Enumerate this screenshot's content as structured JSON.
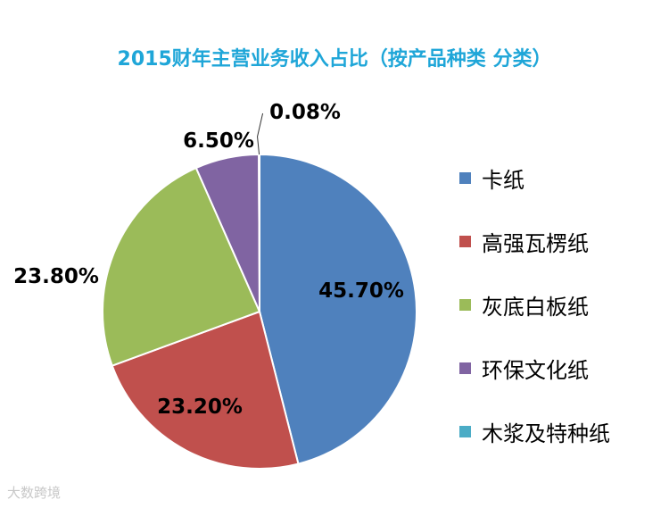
{
  "chart_data": {
    "type": "pie",
    "title": "2015财年主营业务收入占比（按产品种类 分类）",
    "start_angle_deg": 0,
    "direction": "clockwise",
    "legend_position": "right",
    "slices": [
      {
        "name": "卡纸",
        "value": 45.7,
        "label": "45.70%",
        "color": "#4f81bd"
      },
      {
        "name": "高强瓦楞纸",
        "value": 23.2,
        "label": "23.20%",
        "color": "#c0504d"
      },
      {
        "name": "灰底白板纸",
        "value": 23.8,
        "label": "23.80%",
        "color": "#9bbb59"
      },
      {
        "name": "环保文化纸",
        "value": 6.5,
        "label": "6.50%",
        "color": "#8064a2"
      },
      {
        "name": "木浆及特种纸",
        "value": 0.08,
        "label": "0.08%",
        "color": "#4bacc6"
      }
    ]
  },
  "watermark": "大数跨境"
}
